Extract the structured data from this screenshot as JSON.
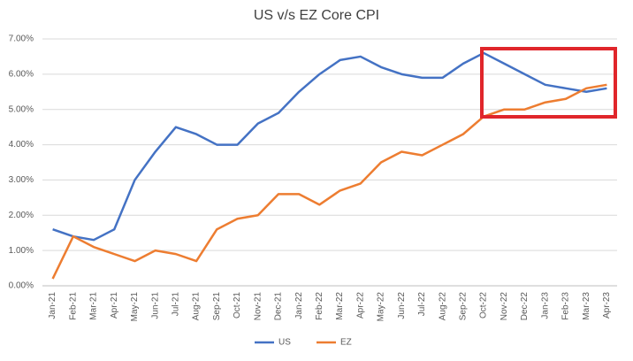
{
  "chart_data": {
    "type": "line",
    "title": "US v/s EZ Core CPI",
    "categories": [
      "Jan-21",
      "Feb-21",
      "Mar-21",
      "Apr-21",
      "May-21",
      "Jun-21",
      "Jul-21",
      "Aug-21",
      "Sep-21",
      "Oct-21",
      "Nov-21",
      "Dec-21",
      "Jan-22",
      "Feb-22",
      "Mar-22",
      "Apr-22",
      "May-22",
      "Jun-22",
      "Jul-22",
      "Aug-22",
      "Sep-22",
      "Oct-22",
      "Nov-22",
      "Dec-22",
      "Jan-23",
      "Feb-23",
      "Mar-23",
      "Apr-23"
    ],
    "series": [
      {
        "name": "US",
        "color": "#4472c4",
        "values": [
          1.6,
          1.4,
          1.3,
          1.6,
          3.0,
          3.8,
          4.5,
          4.3,
          4.0,
          4.0,
          4.6,
          4.9,
          5.5,
          6.0,
          6.4,
          6.5,
          6.2,
          6.0,
          5.9,
          5.9,
          6.3,
          6.6,
          6.3,
          6.0,
          5.7,
          5.6,
          5.5,
          5.6
        ]
      },
      {
        "name": "EZ",
        "color": "#ed7d31",
        "values": [
          0.2,
          1.4,
          1.1,
          0.9,
          0.7,
          1.0,
          0.9,
          0.7,
          1.6,
          1.9,
          2.0,
          2.6,
          2.6,
          2.3,
          2.7,
          2.9,
          3.5,
          3.8,
          3.7,
          4.0,
          4.3,
          4.8,
          5.0,
          5.0,
          5.2,
          5.3,
          5.6,
          5.7
        ]
      }
    ],
    "ylim": [
      0,
      7
    ],
    "yticks": [
      {
        "value": 0,
        "label": "0.00%"
      },
      {
        "value": 1,
        "label": "1.00%"
      },
      {
        "value": 2,
        "label": "2.00%"
      },
      {
        "value": 3,
        "label": "3.00%"
      },
      {
        "value": 4,
        "label": "4.00%"
      },
      {
        "value": 5,
        "label": "5.00%"
      },
      {
        "value": 6,
        "label": "6.00%"
      },
      {
        "value": 7,
        "label": "7.00%"
      }
    ],
    "grid": true,
    "legend": "bottom"
  }
}
